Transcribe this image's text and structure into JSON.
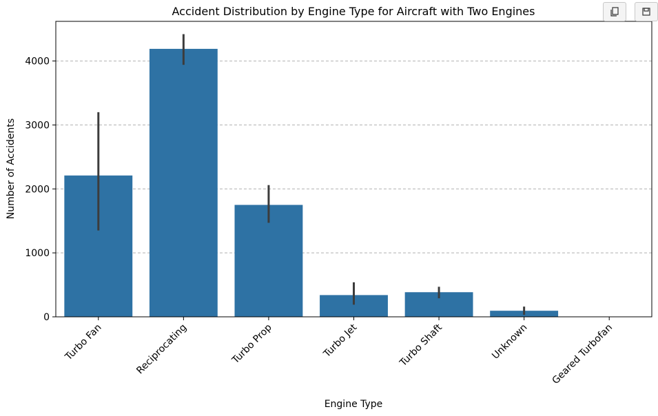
{
  "toolbar": {
    "copy_icon": "copy-icon",
    "save_icon": "save-icon"
  },
  "chart_data": {
    "type": "bar",
    "title": "Accident Distribution by Engine Type for Aircraft with Two Engines",
    "xlabel": "Engine Type",
    "ylabel": "Number of Accidents",
    "categories": [
      "Turbo Fan",
      "Reciprocating",
      "Turbo Prop",
      "Turbo Jet",
      "Turbo Shaft",
      "Unknown",
      "Geared Turbofan"
    ],
    "values": [
      2210,
      4190,
      1750,
      340,
      385,
      95,
      0
    ],
    "error_bars": [
      [
        1350,
        3200
      ],
      [
        3940,
        4420
      ],
      [
        1470,
        2060
      ],
      [
        190,
        540
      ],
      [
        290,
        470
      ],
      [
        30,
        160
      ],
      [
        0,
        0
      ]
    ],
    "ylim": [
      0,
      4620
    ],
    "yticks": [
      0,
      1000,
      2000,
      3000,
      4000
    ],
    "grid": "y-dashed",
    "bar_color": "#2e72a4",
    "error_color": "#3c3c3c",
    "grid_color": "#b0b0b0"
  }
}
